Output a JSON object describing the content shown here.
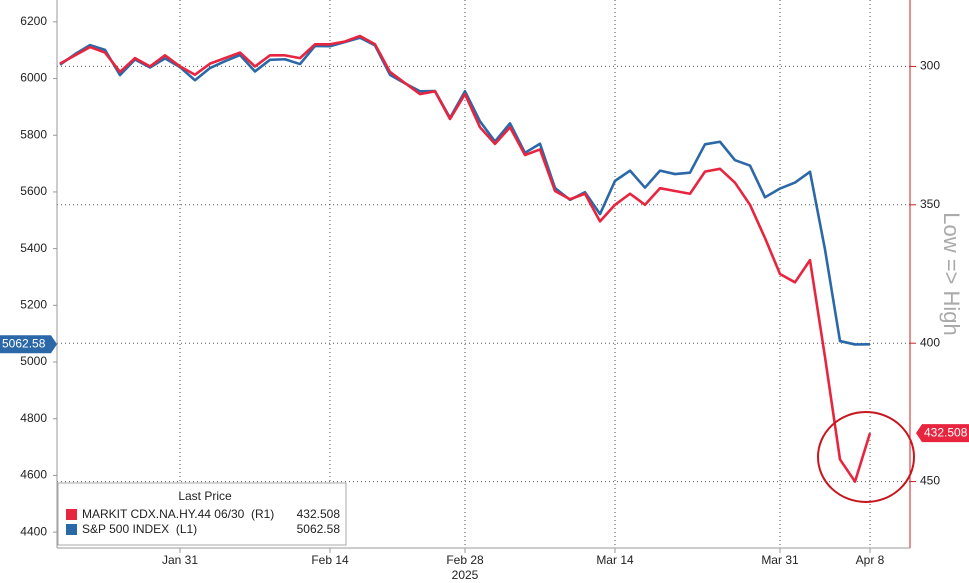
{
  "chart_data": {
    "type": "line",
    "x": [
      "2025-01-21",
      "2025-01-22",
      "2025-01-23",
      "2025-01-24",
      "2025-01-27",
      "2025-01-28",
      "2025-01-29",
      "2025-01-30",
      "2025-01-31",
      "2025-02-03",
      "2025-02-04",
      "2025-02-05",
      "2025-02-06",
      "2025-02-07",
      "2025-02-10",
      "2025-02-11",
      "2025-02-12",
      "2025-02-13",
      "2025-02-14",
      "2025-02-18",
      "2025-02-19",
      "2025-02-20",
      "2025-02-21",
      "2025-02-24",
      "2025-02-25",
      "2025-02-26",
      "2025-02-27",
      "2025-02-28",
      "2025-03-03",
      "2025-03-04",
      "2025-03-05",
      "2025-03-06",
      "2025-03-07",
      "2025-03-10",
      "2025-03-11",
      "2025-03-12",
      "2025-03-13",
      "2025-03-14",
      "2025-03-17",
      "2025-03-18",
      "2025-03-19",
      "2025-03-20",
      "2025-03-21",
      "2025-03-24",
      "2025-03-25",
      "2025-03-26",
      "2025-03-27",
      "2025-03-28",
      "2025-03-31",
      "2025-04-01",
      "2025-04-02",
      "2025-04-03",
      "2025-04-04",
      "2025-04-07",
      "2025-04-08"
    ],
    "xticks": [
      {
        "value": "2025-01-31",
        "label": "Jan 31"
      },
      {
        "value": "2025-02-14",
        "label": "Feb 14"
      },
      {
        "value": "2025-02-28",
        "label": "Feb 28"
      },
      {
        "value": "2025-03-14",
        "label": "Mar 14"
      },
      {
        "value": "2025-03-31",
        "label": "Mar 31"
      },
      {
        "value": "2025-04-08",
        "label": "Apr 8"
      }
    ],
    "xlabel": "2025",
    "ylim": [
      4344,
      6277
    ],
    "yticks": [
      4400,
      4600,
      4800,
      5000,
      5200,
      5400,
      5600,
      5800,
      6000,
      6200
    ],
    "y2lim": [
      474,
      276
    ],
    "y2ticks": [
      300,
      350,
      400,
      450
    ],
    "y2label": "Low => High",
    "grid": true,
    "legend_title": "Last Price",
    "series": [
      {
        "name": "MARKIT CDX.NA.HY.44 06/30  (R1)",
        "color": "#e8253f",
        "axis": "y2",
        "values": [
          299,
          296,
          293,
          295,
          302,
          297,
          300,
          296,
          300,
          303,
          299,
          297,
          295,
          300,
          296,
          296,
          297,
          292,
          292,
          291,
          289,
          292,
          302,
          306,
          310,
          309,
          319,
          310,
          322,
          328,
          322,
          332,
          330,
          345,
          348,
          346,
          356,
          350,
          346,
          350,
          344,
          345,
          346,
          338,
          337,
          342,
          350,
          362,
          375,
          378,
          370,
          405,
          442,
          450,
          432.508
        ]
      },
      {
        "name": "S&P 500 INDEX  (L1)",
        "color": "#2b68a8",
        "values": [
          6049,
          6086,
          6118,
          6101,
          6012,
          6067,
          6039,
          6071,
          6040,
          5994,
          6037,
          6061,
          6083,
          6025,
          6066,
          6068,
          6051,
          6115,
          6114,
          6129,
          6144,
          6117,
          6013,
          5983,
          5955,
          5956,
          5861,
          5955,
          5849,
          5778,
          5842,
          5738,
          5770,
          5614,
          5572,
          5599,
          5522,
          5639,
          5675,
          5615,
          5675,
          5663,
          5668,
          5768,
          5777,
          5712,
          5693,
          5581,
          5612,
          5633,
          5671,
          5397,
          5074,
          5062,
          5062.58
        ]
      }
    ]
  }
}
